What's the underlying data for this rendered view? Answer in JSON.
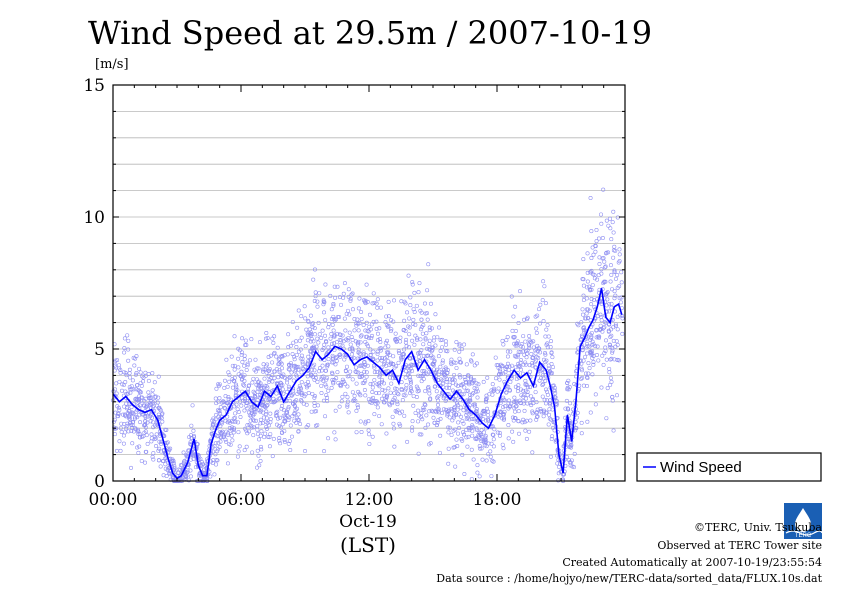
{
  "chart_data": {
    "type": "line",
    "title": "Wind Speed at 29.5m / 2007-10-19",
    "ylabel": "[m/s]",
    "ylim": [
      0,
      15
    ],
    "yticks": [
      0,
      5,
      10,
      15
    ],
    "xlim": [
      0,
      24
    ],
    "xticks": [
      {
        "value": 0,
        "label": "00:00"
      },
      {
        "value": 6,
        "label": "06:00"
      },
      {
        "value": 12,
        "label": "12:00"
      },
      {
        "value": 18,
        "label": "18:00"
      }
    ],
    "date_label": "Oct-19",
    "xlabel": "(LST)",
    "grid": true,
    "legend_position": "right",
    "series": [
      {
        "name": "Wind Speed",
        "color": "#0000ff",
        "x": [
          0.0,
          0.3,
          0.6,
          0.9,
          1.2,
          1.5,
          1.8,
          2.1,
          2.4,
          2.6,
          2.8,
          3.0,
          3.2,
          3.5,
          3.8,
          4.0,
          4.2,
          4.4,
          4.6,
          4.8,
          5.0,
          5.3,
          5.6,
          5.9,
          6.2,
          6.5,
          6.8,
          7.1,
          7.4,
          7.7,
          8.0,
          8.3,
          8.6,
          8.9,
          9.2,
          9.5,
          9.8,
          10.1,
          10.4,
          10.7,
          11.0,
          11.3,
          11.6,
          11.9,
          12.2,
          12.5,
          12.8,
          13.1,
          13.4,
          13.7,
          14.0,
          14.3,
          14.6,
          14.9,
          15.2,
          15.5,
          15.8,
          16.1,
          16.4,
          16.7,
          17.0,
          17.3,
          17.6,
          17.9,
          18.2,
          18.5,
          18.8,
          19.1,
          19.4,
          19.7,
          20.0,
          20.3,
          20.5,
          20.7,
          20.9,
          21.1,
          21.3,
          21.5,
          21.7,
          21.9,
          22.1,
          22.3,
          22.5,
          22.7,
          22.9,
          23.1,
          23.3,
          23.5,
          23.7,
          23.85
        ],
        "values": [
          3.3,
          3.0,
          3.2,
          2.9,
          2.7,
          2.6,
          2.7,
          2.3,
          1.4,
          0.8,
          0.3,
          0.1,
          0.2,
          0.7,
          1.6,
          0.6,
          0.2,
          0.2,
          1.4,
          1.9,
          2.3,
          2.5,
          3.0,
          3.2,
          3.4,
          3.0,
          2.8,
          3.4,
          3.2,
          3.6,
          3.0,
          3.4,
          3.8,
          4.0,
          4.3,
          4.9,
          4.6,
          4.8,
          5.1,
          5.0,
          4.8,
          4.4,
          4.6,
          4.7,
          4.5,
          4.3,
          4.0,
          4.2,
          3.7,
          4.6,
          4.9,
          4.2,
          4.6,
          4.2,
          3.7,
          3.4,
          3.1,
          3.4,
          3.1,
          2.7,
          2.5,
          2.2,
          2.0,
          2.5,
          3.3,
          3.8,
          4.2,
          3.9,
          4.1,
          3.6,
          4.5,
          4.2,
          3.6,
          2.8,
          1.0,
          0.3,
          2.5,
          1.5,
          3.0,
          5.1,
          5.4,
          5.8,
          6.1,
          6.6,
          7.3,
          6.2,
          6.0,
          6.6,
          6.7,
          6.3
        ]
      }
    ],
    "scatter_note_series": "Wind Speed"
  },
  "credits": {
    "org": "©TERC, Univ. Tsukuba",
    "observed": "Observed at TERC Tower site",
    "created": "Created Automatically at 2007-10-19/23:55:54",
    "source": "Data source : /home/hojyo/new/TERC-data/sorted_data/FLUX.10s.dat"
  },
  "logo": {
    "text": "TERC",
    "color": "#1a5fb4"
  }
}
